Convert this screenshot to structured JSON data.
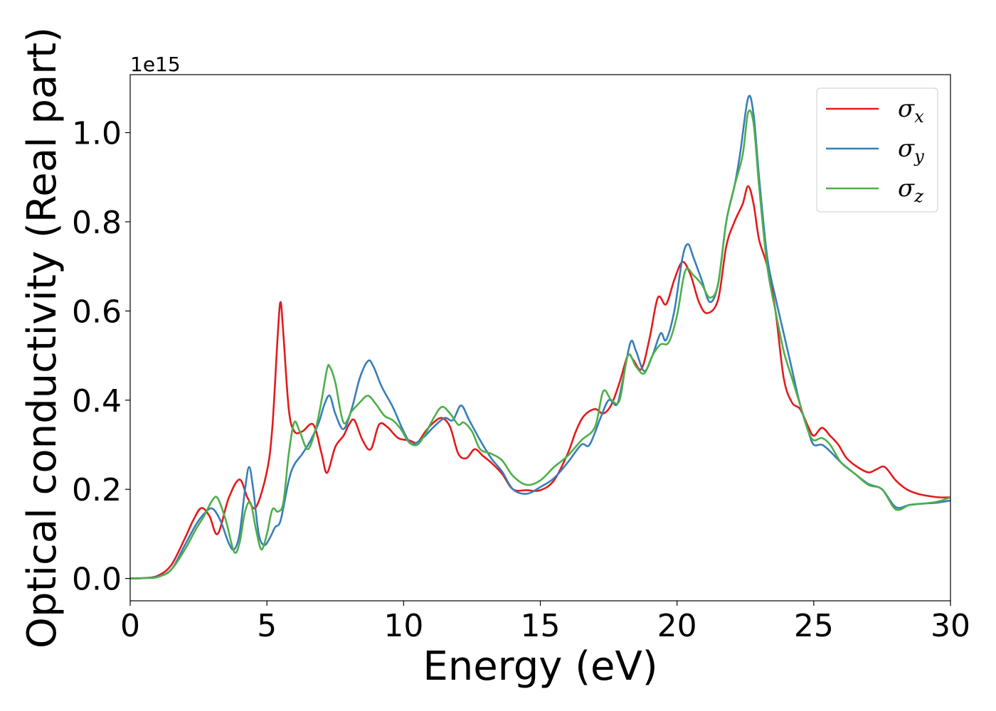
{
  "chart_data": {
    "type": "line",
    "title": "",
    "xlabel": "Energy (eV)",
    "ylabel": "Optical conductivity (Real part)",
    "y_offset_label": "1e15",
    "xlim": [
      0,
      30
    ],
    "ylim": [
      -0.05,
      1.13
    ],
    "xticks": [
      0,
      5,
      10,
      15,
      20,
      25,
      30
    ],
    "xtick_labels": [
      "0",
      "5",
      "10",
      "15",
      "20",
      "25",
      "30"
    ],
    "yticks": [
      0.0,
      0.2,
      0.4,
      0.6,
      0.8,
      1.0
    ],
    "ytick_labels": [
      "0.0",
      "0.2",
      "0.4",
      "0.6",
      "0.8",
      "1.0"
    ],
    "grid": false,
    "legend_position": "top-right",
    "series": [
      {
        "name": "σx",
        "symbol": "σ",
        "subscript": "x",
        "color": "#e41a1c",
        "x": [
          0,
          0.5,
          1.0,
          1.5,
          2.0,
          2.3,
          2.6,
          2.9,
          3.2,
          3.6,
          4.0,
          4.3,
          4.6,
          5.0,
          5.2,
          5.4,
          5.5,
          5.6,
          5.8,
          6.0,
          6.3,
          6.7,
          7.0,
          7.2,
          7.5,
          7.8,
          8.0,
          8.2,
          8.5,
          8.8,
          9.1,
          9.4,
          9.8,
          10.2,
          10.5,
          10.8,
          11.1,
          11.4,
          11.7,
          12.0,
          12.3,
          12.6,
          12.9,
          13.2,
          13.6,
          14.0,
          14.5,
          15.0,
          15.5,
          16.0,
          16.3,
          16.6,
          17.0,
          17.3,
          17.6,
          17.9,
          18.2,
          18.4,
          18.7,
          19.0,
          19.3,
          19.6,
          19.9,
          20.2,
          20.5,
          20.8,
          21.1,
          21.5,
          21.8,
          22.1,
          22.4,
          22.6,
          22.8,
          23.0,
          23.3,
          23.6,
          23.9,
          24.2,
          24.5,
          24.8,
          25.0,
          25.3,
          25.6,
          25.9,
          26.2,
          26.6,
          27.0,
          27.3,
          27.6,
          28.0,
          28.4,
          28.8,
          29.2,
          29.6,
          30.0
        ],
        "y": [
          0,
          0.001,
          0.006,
          0.03,
          0.09,
          0.13,
          0.158,
          0.14,
          0.1,
          0.18,
          0.222,
          0.18,
          0.16,
          0.24,
          0.34,
          0.55,
          0.62,
          0.55,
          0.38,
          0.33,
          0.33,
          0.345,
          0.28,
          0.237,
          0.295,
          0.32,
          0.345,
          0.355,
          0.31,
          0.29,
          0.345,
          0.34,
          0.315,
          0.31,
          0.305,
          0.33,
          0.35,
          0.36,
          0.34,
          0.28,
          0.27,
          0.29,
          0.275,
          0.26,
          0.235,
          0.2,
          0.198,
          0.198,
          0.22,
          0.28,
          0.33,
          0.365,
          0.38,
          0.37,
          0.39,
          0.44,
          0.5,
          0.49,
          0.47,
          0.54,
          0.63,
          0.615,
          0.67,
          0.71,
          0.68,
          0.62,
          0.595,
          0.625,
          0.745,
          0.8,
          0.84,
          0.88,
          0.84,
          0.76,
          0.7,
          0.6,
          0.45,
          0.395,
          0.38,
          0.34,
          0.32,
          0.338,
          0.32,
          0.3,
          0.27,
          0.25,
          0.238,
          0.245,
          0.25,
          0.22,
          0.2,
          0.19,
          0.185,
          0.182,
          0.182
        ]
      },
      {
        "name": "σy",
        "symbol": "σ",
        "subscript": "y",
        "color": "#377eb8",
        "x": [
          0,
          0.5,
          1.0,
          1.5,
          2.0,
          2.4,
          2.7,
          3.0,
          3.3,
          3.6,
          3.8,
          4.0,
          4.2,
          4.35,
          4.5,
          4.7,
          4.9,
          5.1,
          5.3,
          5.5,
          5.8,
          6.0,
          6.3,
          6.6,
          6.9,
          7.1,
          7.3,
          7.5,
          7.8,
          8.1,
          8.4,
          8.7,
          8.9,
          9.2,
          9.6,
          10.0,
          10.3,
          10.7,
          11.1,
          11.5,
          11.8,
          12.1,
          12.4,
          12.8,
          13.2,
          13.6,
          14.0,
          14.5,
          15.0,
          15.5,
          16.0,
          16.5,
          16.8,
          17.2,
          17.5,
          17.8,
          18.0,
          18.3,
          18.5,
          18.8,
          19.1,
          19.4,
          19.6,
          19.9,
          20.2,
          20.4,
          20.6,
          20.9,
          21.2,
          21.5,
          21.8,
          22.1,
          22.3,
          22.6,
          22.8,
          23.0,
          23.3,
          23.6,
          23.9,
          24.2,
          24.5,
          24.8,
          25.0,
          25.3,
          25.6,
          26.0,
          26.5,
          27.0,
          27.5,
          28.0,
          28.5,
          29.0,
          29.5,
          30.0
        ],
        "y": [
          0,
          0.001,
          0.004,
          0.02,
          0.075,
          0.12,
          0.145,
          0.157,
          0.13,
          0.08,
          0.065,
          0.1,
          0.2,
          0.25,
          0.2,
          0.1,
          0.075,
          0.09,
          0.115,
          0.13,
          0.22,
          0.255,
          0.28,
          0.31,
          0.35,
          0.39,
          0.41,
          0.37,
          0.335,
          0.38,
          0.45,
          0.488,
          0.475,
          0.43,
          0.385,
          0.33,
          0.302,
          0.315,
          0.34,
          0.36,
          0.355,
          0.388,
          0.355,
          0.31,
          0.27,
          0.24,
          0.2,
          0.19,
          0.205,
          0.225,
          0.26,
          0.3,
          0.3,
          0.36,
          0.4,
          0.39,
          0.44,
          0.53,
          0.51,
          0.465,
          0.5,
          0.55,
          0.535,
          0.6,
          0.72,
          0.75,
          0.72,
          0.67,
          0.62,
          0.66,
          0.8,
          0.88,
          0.95,
          1.078,
          1.04,
          0.9,
          0.72,
          0.63,
          0.55,
          0.47,
          0.39,
          0.33,
          0.3,
          0.3,
          0.285,
          0.26,
          0.235,
          0.212,
          0.2,
          0.16,
          0.165,
          0.168,
          0.17,
          0.175
        ]
      },
      {
        "name": "σz",
        "symbol": "σ",
        "subscript": "z",
        "color": "#4daf4a",
        "x": [
          0,
          0.5,
          1.0,
          1.5,
          2.0,
          2.4,
          2.7,
          3.0,
          3.2,
          3.5,
          3.8,
          4.0,
          4.2,
          4.4,
          4.6,
          4.8,
          5.0,
          5.2,
          5.4,
          5.6,
          5.8,
          6.0,
          6.2,
          6.5,
          6.8,
          7.0,
          7.2,
          7.3,
          7.5,
          7.8,
          8.1,
          8.4,
          8.7,
          9.0,
          9.3,
          9.6,
          9.9,
          10.2,
          10.5,
          10.8,
          11.1,
          11.4,
          11.7,
          12.0,
          12.2,
          12.5,
          12.8,
          13.2,
          13.6,
          14.0,
          14.5,
          15.0,
          15.5,
          16.0,
          16.5,
          17.0,
          17.3,
          17.6,
          17.9,
          18.2,
          18.5,
          18.8,
          19.1,
          19.4,
          19.7,
          20.0,
          20.3,
          20.6,
          20.9,
          21.2,
          21.5,
          21.8,
          22.1,
          22.4,
          22.6,
          22.8,
          23.0,
          23.3,
          23.6,
          23.9,
          24.2,
          24.5,
          24.8,
          25.0,
          25.3,
          25.6,
          26.0,
          26.5,
          27.0,
          27.5,
          28.0,
          28.5,
          29.0,
          29.5,
          30.0
        ],
        "y": [
          0,
          0.001,
          0.003,
          0.02,
          0.065,
          0.11,
          0.14,
          0.175,
          0.18,
          0.13,
          0.06,
          0.08,
          0.15,
          0.17,
          0.11,
          0.065,
          0.1,
          0.155,
          0.15,
          0.17,
          0.28,
          0.35,
          0.33,
          0.29,
          0.34,
          0.4,
          0.47,
          0.475,
          0.44,
          0.35,
          0.375,
          0.395,
          0.41,
          0.39,
          0.365,
          0.355,
          0.335,
          0.305,
          0.3,
          0.325,
          0.36,
          0.385,
          0.37,
          0.345,
          0.35,
          0.33,
          0.29,
          0.28,
          0.265,
          0.23,
          0.21,
          0.22,
          0.25,
          0.275,
          0.31,
          0.34,
          0.42,
          0.4,
          0.4,
          0.5,
          0.475,
          0.46,
          0.5,
          0.525,
          0.53,
          0.59,
          0.69,
          0.68,
          0.66,
          0.63,
          0.66,
          0.8,
          0.88,
          0.95,
          1.045,
          1.02,
          0.88,
          0.7,
          0.6,
          0.51,
          0.45,
          0.39,
          0.33,
          0.31,
          0.315,
          0.3,
          0.26,
          0.235,
          0.21,
          0.2,
          0.155,
          0.165,
          0.168,
          0.172,
          0.182
        ]
      }
    ]
  }
}
